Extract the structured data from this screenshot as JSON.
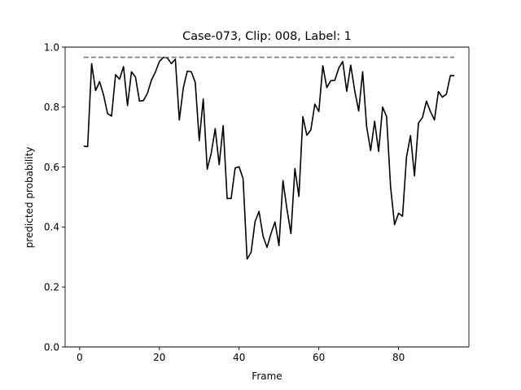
{
  "chart_data": {
    "type": "line",
    "title": "Case-073, Clip: 008, Label: 1",
    "xlabel": "Frame",
    "ylabel": "predicted probability",
    "xlim": [
      -3.65,
      97.65
    ],
    "ylim": [
      0.0,
      1.0
    ],
    "xticks": [
      0,
      20,
      40,
      60,
      80
    ],
    "yticks": [
      0.0,
      0.2,
      0.4,
      0.6,
      0.8,
      1.0
    ],
    "xtick_labels": [
      "0",
      "20",
      "40",
      "60",
      "80"
    ],
    "ytick_labels": [
      "0.0",
      "0.2",
      "0.4",
      "0.6",
      "0.8",
      "1.0"
    ],
    "grid": false,
    "series": [
      {
        "style": "solid",
        "color": "#000000",
        "x": [
          1,
          2,
          3,
          4,
          5,
          6,
          7,
          8,
          9,
          10,
          11,
          12,
          13,
          14,
          15,
          16,
          17,
          18,
          19,
          20,
          21,
          22,
          23,
          24,
          25,
          26,
          27,
          28,
          29,
          30,
          31,
          32,
          33,
          34,
          35,
          36,
          37,
          38,
          39,
          40,
          41,
          42,
          43,
          44,
          45,
          46,
          47,
          48,
          49,
          50,
          51,
          52,
          53,
          54,
          55,
          56,
          57,
          58,
          59,
          60,
          61,
          62,
          63,
          64,
          65,
          66,
          67,
          68,
          69,
          70,
          71,
          72,
          73,
          74,
          75,
          76,
          77,
          78,
          79,
          80,
          81,
          82,
          83,
          84,
          85,
          86,
          87,
          88,
          89,
          90,
          91,
          92,
          93,
          94
        ],
        "y": [
          0.67,
          0.668,
          0.945,
          0.855,
          0.885,
          0.84,
          0.778,
          0.77,
          0.908,
          0.893,
          0.935,
          0.805,
          0.918,
          0.9,
          0.82,
          0.822,
          0.846,
          0.89,
          0.917,
          0.952,
          0.966,
          0.964,
          0.945,
          0.96,
          0.757,
          0.864,
          0.92,
          0.918,
          0.882,
          0.688,
          0.827,
          0.593,
          0.646,
          0.728,
          0.608,
          0.738,
          0.495,
          0.495,
          0.597,
          0.601,
          0.561,
          0.293,
          0.315,
          0.418,
          0.452,
          0.37,
          0.332,
          0.378,
          0.417,
          0.338,
          0.555,
          0.46,
          0.378,
          0.595,
          0.502,
          0.768,
          0.706,
          0.724,
          0.81,
          0.785,
          0.938,
          0.865,
          0.888,
          0.889,
          0.93,
          0.952,
          0.853,
          0.94,
          0.855,
          0.787,
          0.918,
          0.734,
          0.655,
          0.753,
          0.652,
          0.8,
          0.768,
          0.534,
          0.408,
          0.446,
          0.436,
          0.634,
          0.705,
          0.571,
          0.747,
          0.765,
          0.82,
          0.785,
          0.757,
          0.852,
          0.833,
          0.843,
          0.905,
          0.905
        ]
      },
      {
        "style": "dashed",
        "color": "#777777",
        "x": [
          1,
          94
        ],
        "y": [
          0.966,
          0.966
        ]
      }
    ]
  }
}
